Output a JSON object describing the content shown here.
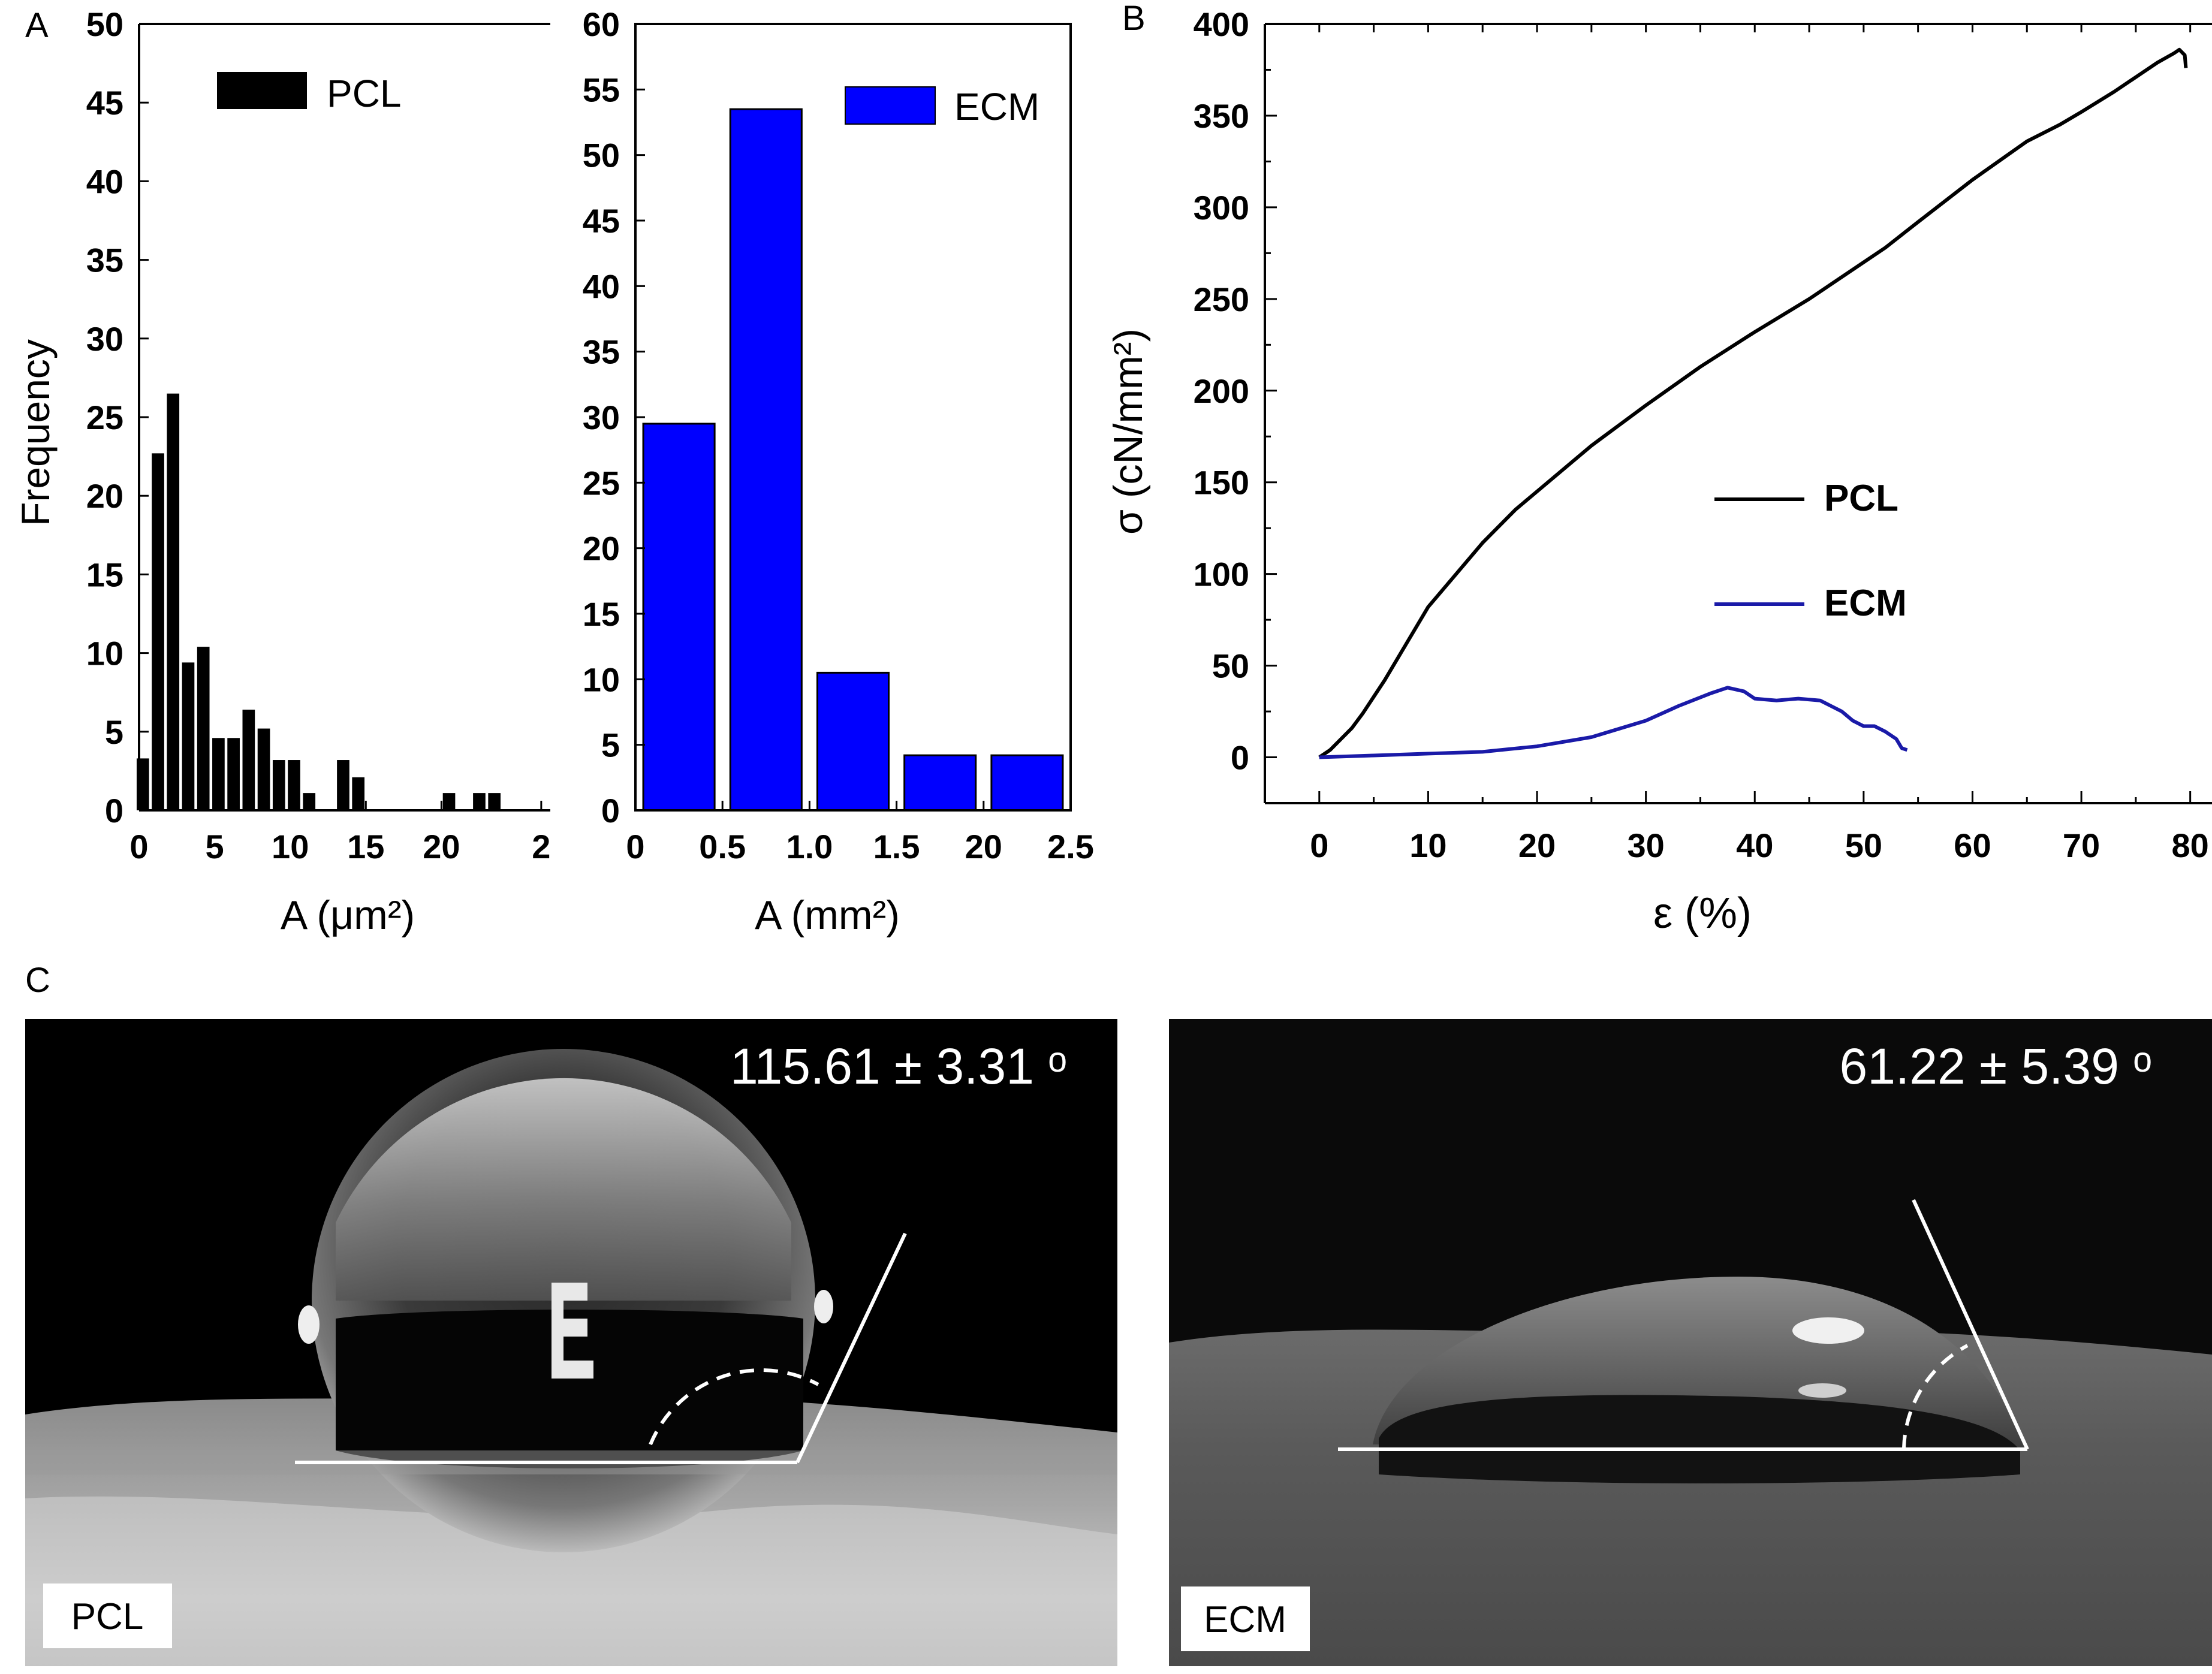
{
  "panel_labels": {
    "a": "A",
    "b": "B",
    "c": "C"
  },
  "colors": {
    "pcl": "#000000",
    "ecm": "#0000ff",
    "ecm_line": "#1a1aa8",
    "axis": "#000000"
  },
  "chart_data": [
    {
      "id": "pcl-hist",
      "type": "bar",
      "title": "",
      "legend": "PCL",
      "legend_position": "top",
      "ylabel": "Frequency",
      "xlabel": "A (μm²)",
      "ylim": [
        0,
        50
      ],
      "yticks": [
        "0",
        "5",
        "10",
        "15",
        "20",
        "25",
        "30",
        "35",
        "40",
        "45",
        "50"
      ],
      "xticks": [
        "0",
        "5",
        "10",
        "15",
        "20",
        "2"
      ],
      "bins": [
        0.25,
        1.25,
        2.25,
        3.25,
        4.25,
        5.25,
        6.25,
        7.25,
        8.25,
        9.25,
        10.25,
        11.25,
        13.5,
        14.5,
        20.5,
        22.5,
        23.5
      ],
      "values": [
        3.3,
        22.7,
        26.5,
        9.4,
        10.4,
        4.6,
        4.6,
        6.4,
        5.2,
        3.2,
        3.2,
        1.1,
        3.2,
        2.1,
        1.1,
        1.1,
        1.1
      ]
    },
    {
      "id": "ecm-hist",
      "type": "bar",
      "title": "",
      "legend": "ECM",
      "legend_position": "top-right",
      "xlabel": "A (mm²)",
      "ylim": [
        0,
        60
      ],
      "yticks": [
        "0",
        "5",
        "10",
        "15",
        "20",
        "25",
        "30",
        "35",
        "40",
        "45",
        "50",
        "55",
        "60"
      ],
      "xticks": [
        "0",
        "0.5",
        "1.0",
        "1.5",
        "20",
        "2.5"
      ],
      "bins": [
        0.25,
        0.75,
        1.25,
        1.75,
        2.25
      ],
      "values": [
        29.5,
        53.5,
        10.5,
        4.2,
        4.2
      ]
    },
    {
      "id": "stress-strain",
      "type": "line",
      "title": "",
      "xlabel": "ε (%)",
      "ylabel": "σ (cN/mm²)",
      "xlim": [
        -5,
        82
      ],
      "ylim": [
        -25,
        400
      ],
      "xticks": [
        "0",
        "10",
        "20",
        "30",
        "40",
        "50",
        "60",
        "70",
        "80"
      ],
      "yticks": [
        "0",
        "50",
        "100",
        "150",
        "200",
        "250",
        "300",
        "350",
        "400"
      ],
      "legend_position": "center-right",
      "series": [
        {
          "name": "PCL",
          "x": [
            0,
            1,
            2,
            3,
            4,
            5,
            6,
            8,
            10,
            12,
            15,
            18,
            20,
            25,
            30,
            35,
            40,
            45,
            50,
            52,
            55,
            60,
            65,
            68,
            70,
            73,
            75,
            77,
            78.5,
            79,
            79.5,
            79.6
          ],
          "y": [
            0,
            4,
            10,
            16,
            24,
            33,
            42,
            62,
            82,
            96,
            117,
            135,
            145,
            170,
            192,
            213,
            232,
            250,
            270,
            278,
            292,
            315,
            336,
            345,
            352,
            363,
            371,
            379,
            384,
            386,
            383,
            376
          ]
        },
        {
          "name": "ECM",
          "x": [
            0,
            5,
            10,
            15,
            20,
            25,
            30,
            33,
            36,
            37.5,
            39,
            40,
            42,
            44,
            46,
            47,
            48,
            49,
            50,
            51,
            52,
            53,
            53.5,
            54
          ],
          "y": [
            0,
            1,
            2,
            3,
            6,
            11,
            20,
            28,
            35,
            38,
            36,
            32,
            31,
            32,
            31,
            28,
            25,
            20,
            17,
            17,
            14,
            10,
            5,
            4
          ]
        }
      ]
    }
  ],
  "contact_angle": [
    {
      "id": "pcl-photo",
      "label": "PCL",
      "angle_text": "115.61 ± 3.31 ᵒ"
    },
    {
      "id": "ecm-photo",
      "label": "ECM",
      "angle_text": "61.22 ± 5.39 ᵒ"
    }
  ]
}
